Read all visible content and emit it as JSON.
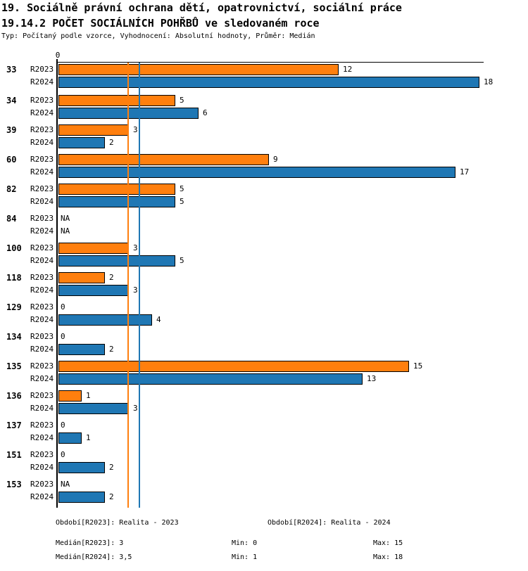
{
  "header": {
    "title_line1": "19. Sociálně právní ochrana dětí, opatrovnictví, sociální práce",
    "title_line2": "19.14.2 POČET SOCIÁLNÍCH POHŘBŮ ve sledovaném roce",
    "subtitle": "Typ: Počítaný podle vzorce, Vyhodnocení: Absolutní hodnoty, Průměr: Medián"
  },
  "chart_data": {
    "type": "bar",
    "orientation": "horizontal",
    "title": "19.14.2 POČET SOCIÁLNÍCH POHŘBŮ ve sledovaném roce",
    "x_axis": {
      "zero_label": "0",
      "min": 0,
      "max_shown": 18.2,
      "grid": false
    },
    "na_text": "NA",
    "categories": [
      "33",
      "34",
      "39",
      "60",
      "82",
      "84",
      "100",
      "118",
      "129",
      "134",
      "135",
      "136",
      "137",
      "151",
      "153"
    ],
    "series": [
      {
        "name": "R2023",
        "color": "#ff7f0e",
        "values": [
          12,
          5,
          3,
          9,
          5,
          "NA",
          3,
          2,
          0,
          0,
          15,
          1,
          0,
          0,
          "NA"
        ]
      },
      {
        "name": "R2024",
        "color": "#1f77b4",
        "values": [
          18,
          6,
          2,
          17,
          5,
          "NA",
          5,
          3,
          4,
          2,
          13,
          3,
          1,
          2,
          2
        ]
      }
    ],
    "reference_lines": [
      {
        "name": "median-r2023",
        "value": 3,
        "color": "#ff7f0e"
      },
      {
        "name": "median-r2024",
        "value": 3.5,
        "color": "#1f77b4"
      }
    ],
    "legend_position": "none",
    "axis_color": "#000000"
  },
  "footer": {
    "period_r2023": "Období[R2023]: Realita - 2023",
    "period_r2024": "Období[R2024]: Realita - 2024",
    "median_r2023": "Medián[R2023]: 3",
    "min_r2023": "Min: 0",
    "max_r2023": "Max: 15",
    "median_r2024": "Medián[R2024]: 3,5",
    "min_r2024": "Min: 1",
    "max_r2024": "Max: 18"
  }
}
